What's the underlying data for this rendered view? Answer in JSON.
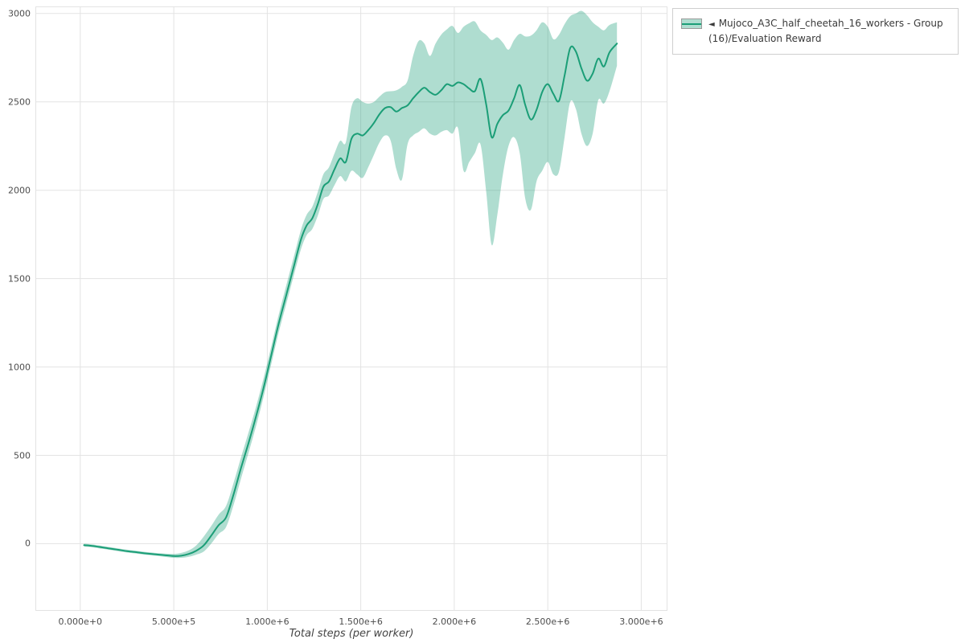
{
  "legend": {
    "marker": "◄"
  },
  "chart_data": {
    "type": "line",
    "title": "",
    "xlabel": "Total steps (per worker)",
    "ylabel": "",
    "grid": true,
    "grid_color": "#e3e3e3",
    "legend_position": "top-right",
    "x_domain": [
      -240000,
      3140000
    ],
    "y_domain": [
      -380,
      3040
    ],
    "x_ticks": [
      {
        "value": 0,
        "label": "0.000e+0"
      },
      {
        "value": 500000,
        "label": "5.000e+5"
      },
      {
        "value": 1000000,
        "label": "1.000e+6"
      },
      {
        "value": 1500000,
        "label": "1.500e+6"
      },
      {
        "value": 2000000,
        "label": "2.000e+6"
      },
      {
        "value": 2500000,
        "label": "2.500e+6"
      },
      {
        "value": 3000000,
        "label": "3.000e+6"
      }
    ],
    "y_ticks": [
      {
        "value": 0,
        "label": "0"
      },
      {
        "value": 500,
        "label": "500"
      },
      {
        "value": 1000,
        "label": "1000"
      },
      {
        "value": 1500,
        "label": "1500"
      },
      {
        "value": 2000,
        "label": "2000"
      },
      {
        "value": 2500,
        "label": "2500"
      },
      {
        "value": 3000,
        "label": "3000"
      }
    ],
    "series": [
      {
        "name": "Mujoco_A3C_half_cheetah_16_workers - Group(16)/Evaluation Reward",
        "line_color": "#1b9e77",
        "band_color": "rgba(27,158,119,0.35)",
        "x": [
          20000,
          60000,
          100000,
          150000,
          200000,
          250000,
          300000,
          350000,
          400000,
          450000,
          500000,
          540000,
          580000,
          620000,
          660000,
          700000,
          740000,
          780000,
          820000,
          860000,
          900000,
          940000,
          980000,
          1020000,
          1060000,
          1100000,
          1140000,
          1180000,
          1210000,
          1240000,
          1270000,
          1300000,
          1330000,
          1360000,
          1390000,
          1420000,
          1450000,
          1480000,
          1510000,
          1540000,
          1570000,
          1600000,
          1630000,
          1660000,
          1690000,
          1720000,
          1750000,
          1780000,
          1810000,
          1840000,
          1870000,
          1900000,
          1930000,
          1960000,
          1990000,
          2020000,
          2050000,
          2080000,
          2110000,
          2140000,
          2170000,
          2200000,
          2230000,
          2260000,
          2290000,
          2320000,
          2350000,
          2380000,
          2410000,
          2440000,
          2470000,
          2500000,
          2530000,
          2560000,
          2590000,
          2620000,
          2650000,
          2680000,
          2710000,
          2740000,
          2770000,
          2800000,
          2830000,
          2870000
        ],
        "mean": [
          -8,
          -12,
          -18,
          -26,
          -34,
          -42,
          -48,
          -55,
          -60,
          -65,
          -70,
          -68,
          -58,
          -40,
          -10,
          45,
          105,
          150,
          280,
          430,
          570,
          720,
          880,
          1060,
          1240,
          1400,
          1560,
          1720,
          1800,
          1840,
          1920,
          2020,
          2050,
          2120,
          2180,
          2160,
          2290,
          2320,
          2310,
          2340,
          2380,
          2430,
          2465,
          2470,
          2445,
          2465,
          2480,
          2520,
          2555,
          2580,
          2555,
          2540,
          2565,
          2600,
          2590,
          2610,
          2600,
          2575,
          2560,
          2630,
          2490,
          2300,
          2375,
          2425,
          2450,
          2520,
          2595,
          2480,
          2400,
          2455,
          2555,
          2600,
          2545,
          2505,
          2650,
          2805,
          2785,
          2690,
          2620,
          2660,
          2745,
          2700,
          2780,
          2830
        ],
        "lower": [
          -16,
          -20,
          -26,
          -34,
          -42,
          -50,
          -56,
          -63,
          -68,
          -74,
          -80,
          -80,
          -74,
          -62,
          -45,
          0,
          55,
          95,
          220,
          370,
          515,
          665,
          830,
          1010,
          1190,
          1350,
          1510,
          1665,
          1745,
          1780,
          1855,
          1950,
          1970,
          2030,
          2080,
          2050,
          2110,
          2090,
          2070,
          2130,
          2200,
          2270,
          2310,
          2280,
          2120,
          2060,
          2260,
          2310,
          2330,
          2350,
          2320,
          2310,
          2330,
          2340,
          2320,
          2350,
          2110,
          2160,
          2210,
          2260,
          2000,
          1690,
          1860,
          2090,
          2250,
          2300,
          2210,
          1950,
          1890,
          2050,
          2110,
          2160,
          2090,
          2105,
          2300,
          2500,
          2460,
          2320,
          2250,
          2320,
          2510,
          2490,
          2560,
          2705
        ],
        "upper": [
          0,
          -4,
          -10,
          -18,
          -26,
          -34,
          -40,
          -47,
          -52,
          -56,
          -58,
          -52,
          -38,
          -10,
          40,
          100,
          165,
          215,
          345,
          490,
          630,
          775,
          935,
          1110,
          1290,
          1455,
          1615,
          1775,
          1860,
          1905,
          1990,
          2090,
          2130,
          2210,
          2280,
          2270,
          2470,
          2520,
          2500,
          2490,
          2500,
          2530,
          2555,
          2560,
          2565,
          2585,
          2620,
          2760,
          2845,
          2830,
          2760,
          2830,
          2880,
          2910,
          2930,
          2890,
          2925,
          2945,
          2955,
          2905,
          2880,
          2850,
          2865,
          2835,
          2795,
          2850,
          2885,
          2870,
          2875,
          2905,
          2950,
          2925,
          2855,
          2880,
          2940,
          2985,
          3000,
          3015,
          2990,
          2950,
          2925,
          2905,
          2935,
          2950
        ]
      }
    ]
  }
}
